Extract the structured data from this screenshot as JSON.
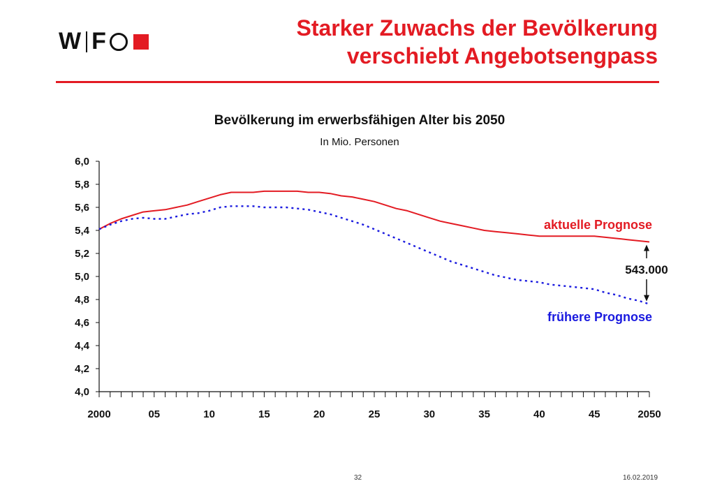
{
  "header": {
    "logo_text": "WIFO",
    "title_line1": "Starker Zuwachs der Bevölkerung",
    "title_line2": "verschiebt Angebotsengpass"
  },
  "colors": {
    "accent": "#e31b23",
    "current_series": "#e31b23",
    "previous_series": "#1a1adf",
    "text": "#111111"
  },
  "chart_data": {
    "type": "line",
    "title": "Bevölkerung im erwerbsfähigen Alter bis 2050",
    "subtitle": "In Mio. Personen",
    "xlabel": "",
    "ylabel": "",
    "xlim": [
      2000,
      2050
    ],
    "ylim": [
      4.0,
      6.0
    ],
    "grid": false,
    "x_tick_values": [
      2000,
      2005,
      2010,
      2015,
      2020,
      2025,
      2030,
      2035,
      2040,
      2045,
      2050
    ],
    "x_tick_labels": [
      "2000",
      "05",
      "10",
      "15",
      "20",
      "25",
      "30",
      "35",
      "40",
      "45",
      "2050"
    ],
    "y_tick_values": [
      4.0,
      4.2,
      4.4,
      4.6,
      4.8,
      5.0,
      5.2,
      5.4,
      5.6,
      5.8,
      6.0
    ],
    "y_tick_labels": [
      "4,0",
      "4,2",
      "4,4",
      "4,6",
      "4,8",
      "5,0",
      "5,2",
      "5,4",
      "5,6",
      "5,8",
      "6,0"
    ],
    "x": [
      2000,
      2001,
      2002,
      2003,
      2004,
      2005,
      2006,
      2007,
      2008,
      2009,
      2010,
      2011,
      2012,
      2013,
      2014,
      2015,
      2016,
      2017,
      2018,
      2019,
      2020,
      2021,
      2022,
      2023,
      2024,
      2025,
      2026,
      2027,
      2028,
      2029,
      2030,
      2031,
      2032,
      2033,
      2034,
      2035,
      2036,
      2037,
      2038,
      2039,
      2040,
      2041,
      2042,
      2043,
      2044,
      2045,
      2046,
      2047,
      2048,
      2049,
      2050
    ],
    "series": [
      {
        "name": "aktuelle Prognose",
        "style": "solid",
        "values": [
          5.41,
          5.46,
          5.5,
          5.53,
          5.56,
          5.57,
          5.58,
          5.6,
          5.62,
          5.65,
          5.68,
          5.71,
          5.73,
          5.73,
          5.73,
          5.74,
          5.74,
          5.74,
          5.74,
          5.73,
          5.73,
          5.72,
          5.7,
          5.69,
          5.67,
          5.65,
          5.62,
          5.59,
          5.57,
          5.54,
          5.51,
          5.48,
          5.46,
          5.44,
          5.42,
          5.4,
          5.39,
          5.38,
          5.37,
          5.36,
          5.35,
          5.35,
          5.35,
          5.35,
          5.35,
          5.35,
          5.34,
          5.33,
          5.32,
          5.31,
          5.3
        ]
      },
      {
        "name": "frühere Prognose",
        "style": "dotted",
        "values": [
          5.41,
          5.45,
          5.48,
          5.5,
          5.51,
          5.5,
          5.5,
          5.52,
          5.54,
          5.55,
          5.57,
          5.6,
          5.61,
          5.61,
          5.61,
          5.6,
          5.6,
          5.6,
          5.59,
          5.58,
          5.56,
          5.54,
          5.51,
          5.48,
          5.45,
          5.41,
          5.37,
          5.33,
          5.29,
          5.25,
          5.21,
          5.17,
          5.13,
          5.1,
          5.07,
          5.04,
          5.01,
          4.99,
          4.97,
          4.96,
          4.95,
          4.93,
          4.92,
          4.91,
          4.9,
          4.89,
          4.86,
          4.84,
          4.81,
          4.79,
          4.76
        ]
      }
    ],
    "annotations": [
      {
        "text": "543.000",
        "x": 2050,
        "y_from": 5.3,
        "y_to": 4.76
      }
    ],
    "legend": "inline labels right"
  },
  "footer": {
    "page_number": "32",
    "date": "16.02.2019"
  }
}
